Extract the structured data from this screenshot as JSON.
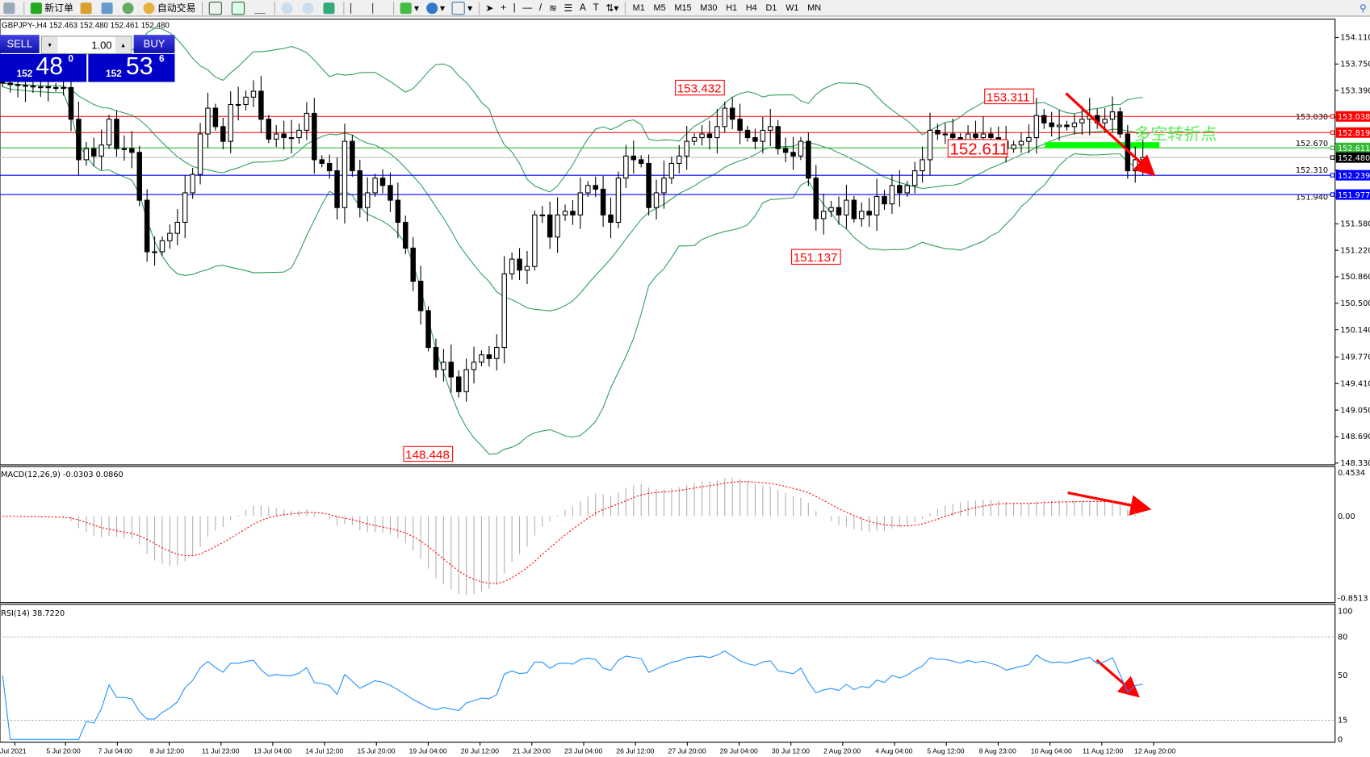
{
  "toolbar": {
    "new_order": "新订单",
    "auto_trading": "自动交易",
    "timeframes": [
      "M1",
      "M5",
      "M15",
      "M30",
      "H1",
      "H4",
      "D1",
      "W1",
      "MN"
    ]
  },
  "symbol_info": "GBPJPY-,H4  152.463 152.480 152.461 152.480",
  "trade_panel": {
    "sell": "SELL",
    "buy": "BUY",
    "lot": "1.00",
    "sell_prefix": "152",
    "sell_main": "48",
    "sell_pip": "0",
    "buy_prefix": "152",
    "buy_main": "53",
    "buy_pip": "6"
  },
  "colors": {
    "bull": "#ffffff",
    "bear": "#000000",
    "bands": "#2e9e5a",
    "macd_signal": "#ff0000",
    "rsi": "#1e90ff",
    "annotation": "#ff0000",
    "turn_bar": "#00ff00"
  },
  "chart_data": {
    "type": "candlestick",
    "symbol": "GBPJPY-",
    "timeframe": "H4",
    "closes": [
      153.49,
      153.47,
      153.46,
      153.45,
      153.44,
      153.44,
      153.43,
      153.43,
      153.43,
      153.0,
      152.45,
      152.6,
      152.5,
      152.65,
      153.0,
      152.6,
      152.6,
      152.55,
      151.9,
      151.2,
      151.2,
      151.35,
      151.45,
      151.6,
      152.0,
      152.25,
      152.8,
      153.15,
      152.9,
      152.7,
      153.2,
      153.2,
      153.3,
      153.38,
      153.0,
      152.73,
      152.8,
      152.75,
      152.75,
      152.85,
      153.08,
      152.45,
      152.4,
      152.3,
      151.8,
      152.7,
      152.3,
      151.8,
      152.0,
      152.2,
      152.1,
      151.9,
      151.6,
      151.25,
      150.8,
      150.4,
      149.9,
      149.6,
      149.7,
      149.5,
      149.3,
      149.6,
      149.7,
      149.8,
      149.75,
      149.9,
      150.9,
      151.1,
      150.95,
      151.0,
      151.7,
      151.7,
      151.4,
      151.7,
      151.75,
      151.7,
      152.0,
      152.1,
      152.05,
      151.7,
      151.6,
      152.2,
      152.5,
      152.45,
      152.4,
      151.8,
      152.0,
      152.2,
      152.4,
      152.5,
      152.7,
      152.75,
      152.8,
      152.75,
      152.9,
      153.15,
      153.0,
      152.85,
      152.75,
      152.7,
      152.85,
      152.9,
      152.6,
      152.55,
      152.5,
      152.7,
      152.2,
      151.65,
      151.75,
      151.8,
      151.7,
      151.9,
      151.65,
      151.75,
      151.7,
      151.95,
      151.85,
      152.1,
      152.0,
      152.1,
      152.3,
      152.45,
      152.85,
      152.8,
      152.8,
      152.75,
      152.7,
      152.8,
      152.75,
      152.8,
      152.75,
      152.7,
      152.6,
      152.65,
      152.7,
      152.75,
      153.05,
      152.95,
      152.9,
      152.92,
      152.9,
      152.95,
      153.0,
      153.05,
      152.95,
      153.0,
      153.1,
      152.8,
      152.3,
      152.45,
      152.48
    ],
    "price_axis": [
      "154.110",
      "153.750",
      "153.390",
      "153.030",
      "152.670",
      "152.310",
      "151.940",
      "151.580",
      "151.220",
      "150.860",
      "150.500",
      "150.140",
      "149.770",
      "149.410",
      "149.050",
      "148.690",
      "148.330"
    ],
    "ylim": [
      148.33,
      154.11
    ],
    "time_axis": [
      "Jul 2021",
      "5 Jul 20:00",
      "7 Jul 04:00",
      "8 Jul 12:00",
      "11 Jul 23:00",
      "13 Jul 04:00",
      "14 Jul 12:00",
      "15 Jul 20:00",
      "19 Jul 04:00",
      "20 Jul 12:00",
      "21 Jul 20:00",
      "23 Jul 04:00",
      "26 Jul 12:00",
      "27 Jul 20:00",
      "29 Jul 04:00",
      "30 Jul 12:00",
      "2 Aug 20:00",
      "4 Aug 04:00",
      "5 Aug 12:00",
      "8 Aug 23:00",
      "10 Aug 04:00",
      "11 Aug 12:00",
      "12 Aug 20:00"
    ],
    "price_lines": [
      {
        "price": 153.038,
        "label": "153.038",
        "color": "#ff0000"
      },
      {
        "price": 152.819,
        "label": "152.819",
        "color": "#ff0000"
      },
      {
        "price": 152.611,
        "label": "152.611",
        "color": "#33bb33"
      },
      {
        "price": 152.48,
        "label": "152.480",
        "color": "#000000",
        "line": "#c0c0c0"
      },
      {
        "price": 152.239,
        "label": "152.239",
        "color": "#0000ff"
      },
      {
        "price": 151.977,
        "label": "151.977",
        "color": "#0000ff"
      }
    ],
    "price_labels": [
      {
        "text": "153.432",
        "price": 153.432,
        "bar": 95
      },
      {
        "text": "148.448",
        "price": 148.448,
        "bar": 60
      },
      {
        "text": "151.137",
        "price": 151.137,
        "bar": 111
      },
      {
        "text": "153.311",
        "price": 153.311,
        "bar": 136
      },
      {
        "text": "152.611",
        "price": 152.611,
        "bar": 125,
        "large": true
      }
    ],
    "annotation_text": "多空转折点",
    "macd": {
      "label": "MACD(12,26,9) -0.0303 0.0860",
      "axis": [
        "0.4534",
        "0.00",
        "-0.8513"
      ],
      "ylim": [
        -0.8513,
        0.4534
      ]
    },
    "rsi": {
      "label": "RSI(14) 38.7220",
      "axis": [
        "100",
        "80",
        "50",
        "15",
        "0"
      ],
      "levels": [
        80,
        15
      ]
    }
  }
}
